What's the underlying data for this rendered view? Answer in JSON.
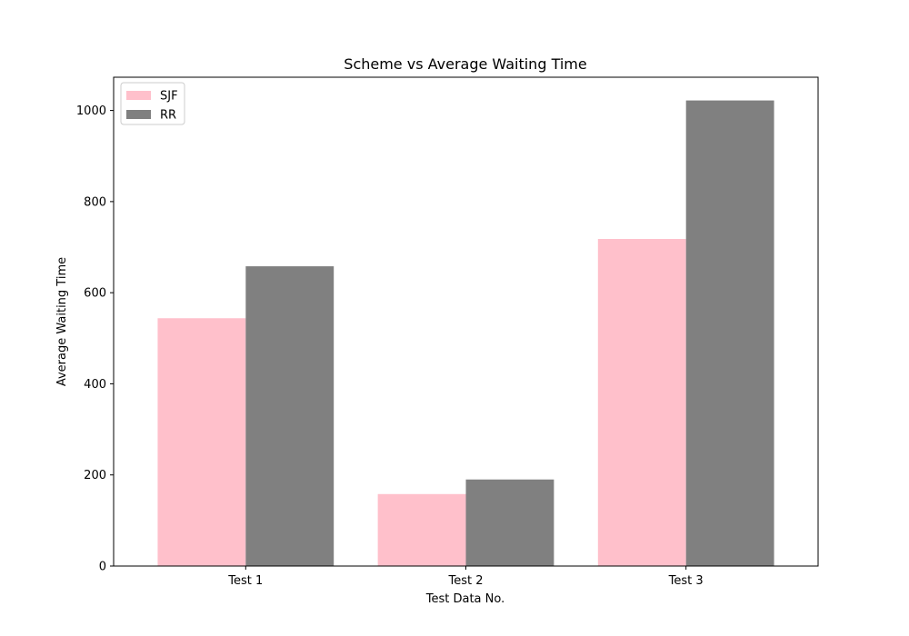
{
  "chart_data": {
    "type": "bar",
    "title": "Scheme vs Average Waiting Time",
    "xlabel": "Test Data No.",
    "ylabel": "Average Waiting Time",
    "categories": [
      "Test 1",
      "Test 2",
      "Test 3"
    ],
    "series": [
      {
        "name": "SJF",
        "color": "#ffc0cb",
        "values": [
          544,
          158,
          718
        ]
      },
      {
        "name": "RR",
        "color": "#808080",
        "values": [
          658,
          190,
          1022
        ]
      }
    ],
    "ylim": [
      0,
      1073
    ],
    "yticks": [
      0,
      200,
      400,
      600,
      800,
      1000
    ],
    "grid": false,
    "legend": "upper-left"
  }
}
